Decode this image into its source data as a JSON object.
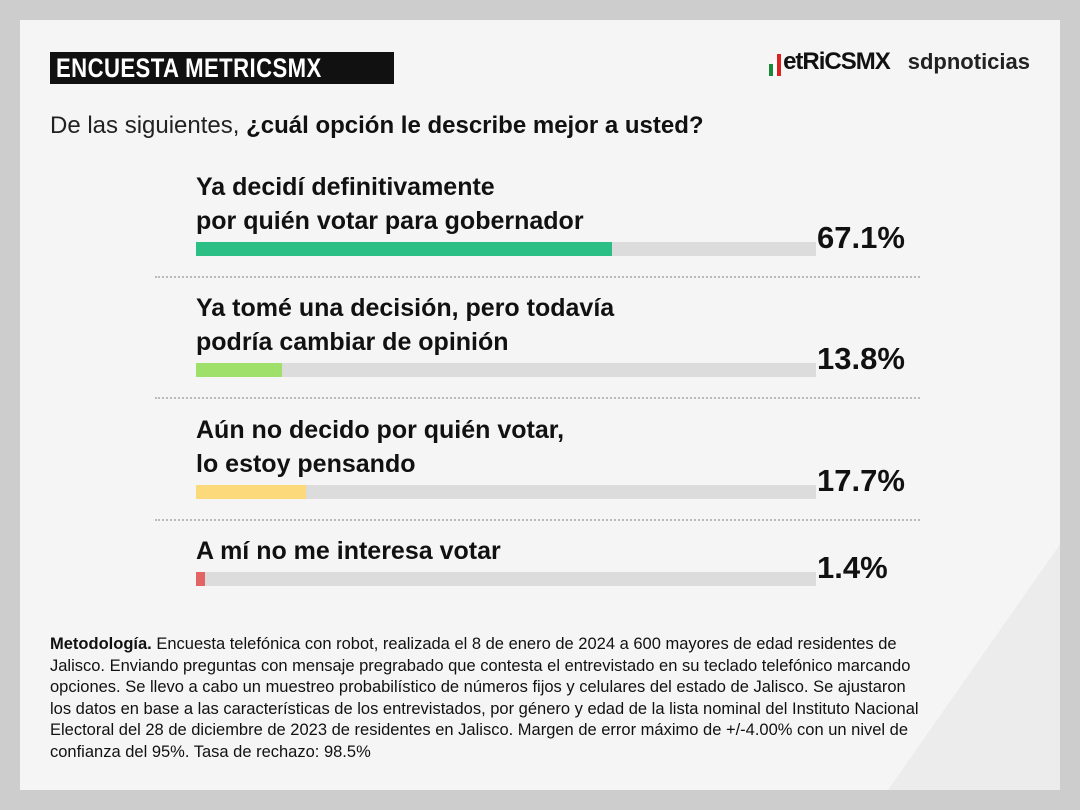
{
  "header": {
    "title": "ENCUESTA METRICSMX",
    "logo_metrics": "etRiCSMX",
    "logo_sdp": "sdpnoticias"
  },
  "question": {
    "plain": "De las siguientes, ",
    "bold": "¿cuál opción le describe mejor a usted?"
  },
  "chart_data": {
    "type": "bar",
    "orientation": "horizontal",
    "xlim": [
      0,
      100
    ],
    "categories": [
      [
        "Ya decidí definitivamente",
        "por quién votar para gobernador"
      ],
      [
        "Ya tomé una decisión, pero todavía",
        "podría cambiar de opinión"
      ],
      [
        "Aún no decido por quién votar,",
        "lo estoy pensando"
      ],
      [
        "A mí no me interesa votar"
      ]
    ],
    "values": [
      67.1,
      13.8,
      17.7,
      1.4
    ],
    "value_labels": [
      "67.1%",
      "13.8%",
      "17.7%",
      "1.4%"
    ],
    "colors": [
      "#2bbf86",
      "#9ee06a",
      "#fcd97a",
      "#e36464"
    ],
    "track_color": "#dcdcdc"
  },
  "methodology": {
    "bold": "Metodología.",
    "lines": [
      " Encuesta telefónica con robot, realizada el 8 de enero de 2024 a 600 mayores de edad residentes de",
      "Jalisco. Enviando preguntas con mensaje pregrabado que contesta el entrevistado en su teclado telefónico marcando",
      "opciones. Se llevo a cabo un muestreo probabilístico de números fijos y celulares del estado de Jalisco. Se ajustaron",
      "los datos en base a las características de los entrevistados, por género y edad de la lista nominal del Instituto Nacional",
      "Electoral del 28 de diciembre de 2023 de residentes en Jalisco. Margen de error máximo de +/-4.00% con un nivel de",
      "confianza del 95%. Tasa de rechazo: 98.5%"
    ]
  }
}
